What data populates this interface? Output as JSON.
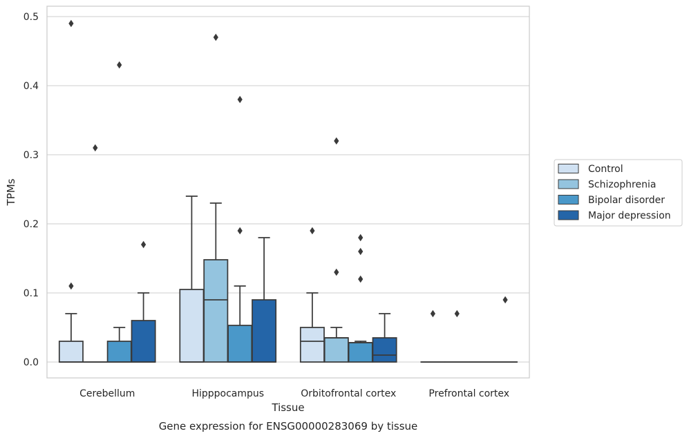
{
  "chart_data": {
    "type": "box",
    "xlabel": "Tissue",
    "ylabel": "TPMs",
    "caption": "Gene expression for ENSG00000283069 by tissue",
    "categories": [
      "Cerebellum",
      "Hipppocampus",
      "Orbitofrontal cortex",
      "Prefrontal cortex"
    ],
    "yticks": [
      "0.0",
      "0.1",
      "0.2",
      "0.3",
      "0.4",
      "0.5"
    ],
    "ylim": [
      -0.023,
      0.515
    ],
    "grid": true,
    "legend_position": "outside-right",
    "series": [
      {
        "name": "Control",
        "color": "#d0e1f2",
        "boxes": [
          {
            "q1": 0.0,
            "median": 0.0,
            "q3": 0.03,
            "whisker_low": 0.0,
            "whisker_high": 0.07,
            "outliers": [
              0.11,
              0.49
            ]
          },
          {
            "q1": 0.0,
            "median": 0.0,
            "q3": 0.105,
            "whisker_low": 0.0,
            "whisker_high": 0.24,
            "outliers": []
          },
          {
            "q1": 0.0,
            "median": 0.03,
            "q3": 0.05,
            "whisker_low": 0.0,
            "whisker_high": 0.1,
            "outliers": [
              0.19
            ]
          },
          {
            "q1": 0.0,
            "median": 0.0,
            "q3": 0.0,
            "whisker_low": 0.0,
            "whisker_high": 0.0,
            "outliers": [
              0.07
            ]
          }
        ]
      },
      {
        "name": "Schizophrenia",
        "color": "#94c4df",
        "boxes": [
          {
            "q1": 0.0,
            "median": 0.0,
            "q3": 0.0,
            "whisker_low": 0.0,
            "whisker_high": 0.0,
            "outliers": [
              0.31
            ]
          },
          {
            "q1": 0.0,
            "median": 0.09,
            "q3": 0.148,
            "whisker_low": 0.0,
            "whisker_high": 0.23,
            "outliers": [
              0.47
            ]
          },
          {
            "q1": 0.0,
            "median": 0.035,
            "q3": 0.035,
            "whisker_low": 0.0,
            "whisker_high": 0.05,
            "outliers": [
              0.13,
              0.32
            ]
          },
          {
            "q1": 0.0,
            "median": 0.0,
            "q3": 0.0,
            "whisker_low": 0.0,
            "whisker_high": 0.0,
            "outliers": [
              0.07
            ]
          }
        ]
      },
      {
        "name": "Bipolar disorder",
        "color": "#4a98c9",
        "boxes": [
          {
            "q1": 0.0,
            "median": 0.0,
            "q3": 0.03,
            "whisker_low": 0.0,
            "whisker_high": 0.05,
            "outliers": [
              0.43
            ]
          },
          {
            "q1": 0.0,
            "median": 0.0,
            "q3": 0.053,
            "whisker_low": 0.0,
            "whisker_high": 0.11,
            "outliers": [
              0.19,
              0.38
            ]
          },
          {
            "q1": 0.0,
            "median": 0.028,
            "q3": 0.028,
            "whisker_low": 0.0,
            "whisker_high": 0.03,
            "outliers": [
              0.12,
              0.16,
              0.18
            ]
          },
          {
            "q1": 0.0,
            "median": 0.0,
            "q3": 0.0,
            "whisker_low": 0.0,
            "whisker_high": 0.0,
            "outliers": []
          }
        ]
      },
      {
        "name": "Major depression",
        "color": "#2465a8",
        "boxes": [
          {
            "q1": 0.0,
            "median": 0.0,
            "q3": 0.06,
            "whisker_low": 0.0,
            "whisker_high": 0.1,
            "outliers": [
              0.17
            ]
          },
          {
            "q1": 0.0,
            "median": 0.0,
            "q3": 0.09,
            "whisker_low": 0.0,
            "whisker_high": 0.18,
            "outliers": []
          },
          {
            "q1": 0.0,
            "median": 0.01,
            "q3": 0.035,
            "whisker_low": 0.0,
            "whisker_high": 0.07,
            "outliers": []
          },
          {
            "q1": 0.0,
            "median": 0.0,
            "q3": 0.0,
            "whisker_low": 0.0,
            "whisker_high": 0.0,
            "outliers": [
              0.09
            ]
          }
        ]
      }
    ]
  }
}
